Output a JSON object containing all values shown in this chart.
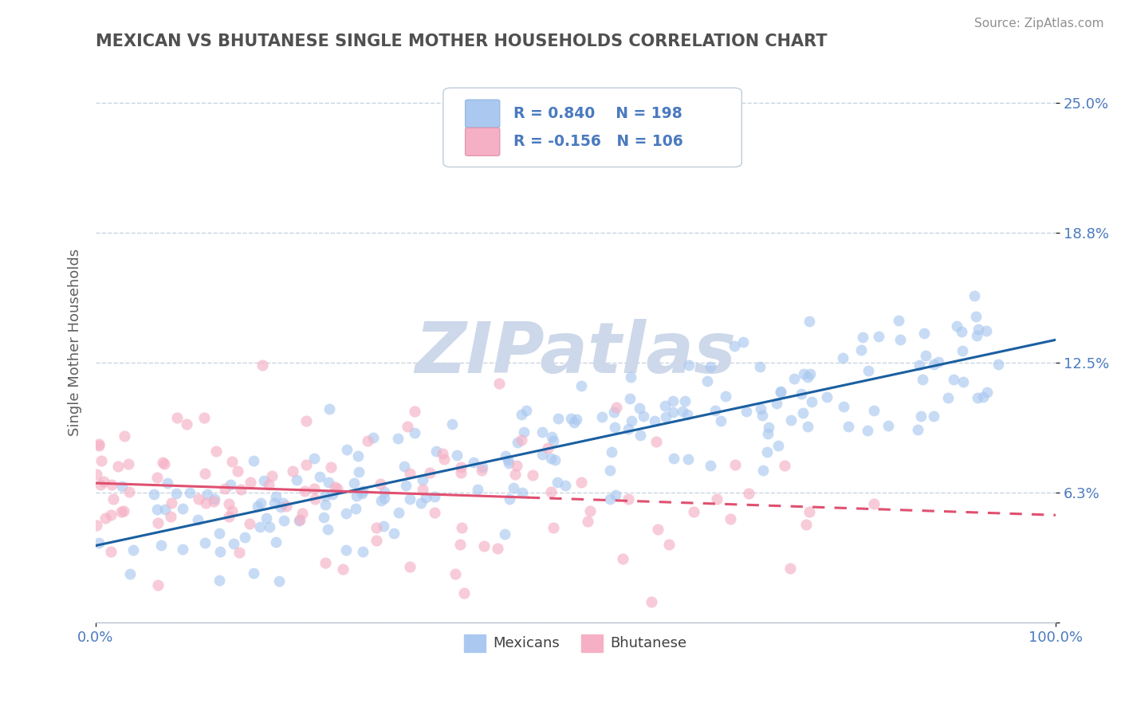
{
  "title": "MEXICAN VS BHUTANESE SINGLE MOTHER HOUSEHOLDS CORRELATION CHART",
  "source": "Source: ZipAtlas.com",
  "ylabel": "Single Mother Households",
  "xlim": [
    0.0,
    1.0
  ],
  "ylim": [
    0.0,
    0.27
  ],
  "yticks": [
    0.0,
    0.0625,
    0.125,
    0.1875,
    0.25
  ],
  "ytick_labels": [
    "",
    "6.3%",
    "12.5%",
    "18.8%",
    "25.0%"
  ],
  "xticks": [
    0.0,
    1.0
  ],
  "xtick_labels": [
    "0.0%",
    "100.0%"
  ],
  "legend_labels": [
    "Mexicans",
    "Bhutanese"
  ],
  "mexican_R": 0.84,
  "mexican_N": 198,
  "bhutanese_R": -0.156,
  "bhutanese_N": 106,
  "mexican_color": "#aac8f0",
  "bhutanese_color": "#f5b0c5",
  "mexican_line_color": "#1a5fa0",
  "bhutanese_line_color": "#e05070",
  "background_color": "#ffffff",
  "watermark_color": "#cdd8ea",
  "grid_color": "#c8d4e0",
  "title_color": "#505050",
  "tick_label_color": "#4a7abf",
  "source_color": "#909090",
  "legend_R_color": "#4a7abf",
  "dot_size": 100,
  "dot_alpha": 0.65,
  "line_width": 2.2,
  "mexican_seed": 7,
  "bhutanese_seed": 13
}
